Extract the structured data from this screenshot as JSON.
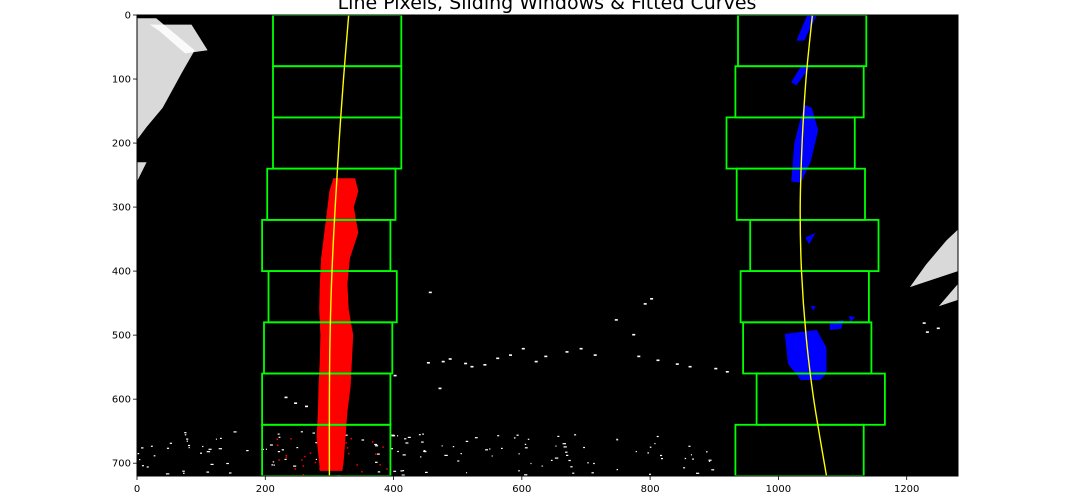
{
  "chart_data": {
    "type": "image-overlay",
    "title": "Line Pixels, Sliding Windows & Fitted Curves",
    "xlabel": "",
    "ylabel": "",
    "xlim": [
      0,
      1280
    ],
    "ylim": [
      720,
      0
    ],
    "x_ticks": [
      0,
      200,
      400,
      600,
      800,
      1000,
      1200
    ],
    "y_ticks": [
      0,
      100,
      200,
      300,
      400,
      500,
      600,
      700
    ],
    "grid": false,
    "background": "#000000",
    "colors": {
      "window": "#00ff00",
      "fit": "#ffff00",
      "left_pixels": "#ff0000",
      "right_pixels": "#0000ff",
      "noise": "#ffffff"
    },
    "window_height": 80,
    "left_windows": [
      {
        "x1": 212,
        "x2": 412,
        "y1": 0,
        "y2": 80
      },
      {
        "x1": 212,
        "x2": 412,
        "y1": 80,
        "y2": 160
      },
      {
        "x1": 212,
        "x2": 412,
        "y1": 160,
        "y2": 240
      },
      {
        "x1": 203,
        "x2": 403,
        "y1": 240,
        "y2": 320
      },
      {
        "x1": 195,
        "x2": 395,
        "y1": 320,
        "y2": 400
      },
      {
        "x1": 205,
        "x2": 405,
        "y1": 400,
        "y2": 480
      },
      {
        "x1": 198,
        "x2": 398,
        "y1": 480,
        "y2": 560
      },
      {
        "x1": 195,
        "x2": 395,
        "y1": 560,
        "y2": 640
      },
      {
        "x1": 195,
        "x2": 395,
        "y1": 640,
        "y2": 720
      }
    ],
    "right_windows": [
      {
        "x1": 937,
        "x2": 1137,
        "y1": 0,
        "y2": 80
      },
      {
        "x1": 933,
        "x2": 1133,
        "y1": 80,
        "y2": 160
      },
      {
        "x1": 919,
        "x2": 1119,
        "y1": 160,
        "y2": 240
      },
      {
        "x1": 935,
        "x2": 1135,
        "y1": 240,
        "y2": 320
      },
      {
        "x1": 956,
        "x2": 1156,
        "y1": 320,
        "y2": 400
      },
      {
        "x1": 941,
        "x2": 1141,
        "y1": 400,
        "y2": 480
      },
      {
        "x1": 945,
        "x2": 1145,
        "y1": 480,
        "y2": 560
      },
      {
        "x1": 966,
        "x2": 1166,
        "y1": 560,
        "y2": 640
      },
      {
        "x1": 933,
        "x2": 1133,
        "y1": 640,
        "y2": 720
      }
    ],
    "left_fit": {
      "x_of_y": [
        {
          "y": 0,
          "x": 330
        },
        {
          "y": 100,
          "x": 322
        },
        {
          "y": 200,
          "x": 315
        },
        {
          "y": 300,
          "x": 309
        },
        {
          "y": 400,
          "x": 304
        },
        {
          "y": 500,
          "x": 301
        },
        {
          "y": 600,
          "x": 300
        },
        {
          "y": 720,
          "x": 300
        }
      ]
    },
    "right_fit": {
      "x_of_y": [
        {
          "y": 0,
          "x": 1053
        },
        {
          "y": 100,
          "x": 1043
        },
        {
          "y": 200,
          "x": 1037
        },
        {
          "y": 300,
          "x": 1034
        },
        {
          "y": 400,
          "x": 1036
        },
        {
          "y": 500,
          "x": 1043
        },
        {
          "y": 600,
          "x": 1055
        },
        {
          "y": 720,
          "x": 1075
        }
      ]
    },
    "left_pixels": [
      {
        "y": 255,
        "x_min": 306,
        "x_max": 340
      },
      {
        "y": 275,
        "x_min": 300,
        "x_max": 345
      },
      {
        "y": 300,
        "x_min": 297,
        "x_max": 338
      },
      {
        "y": 340,
        "x_min": 292,
        "x_max": 345
      },
      {
        "y": 380,
        "x_min": 287,
        "x_max": 332
      },
      {
        "y": 420,
        "x_min": 285,
        "x_max": 328
      },
      {
        "y": 460,
        "x_min": 284,
        "x_max": 330
      },
      {
        "y": 500,
        "x_min": 286,
        "x_max": 337
      },
      {
        "y": 540,
        "x_min": 285,
        "x_max": 335
      },
      {
        "y": 580,
        "x_min": 283,
        "x_max": 333
      },
      {
        "y": 620,
        "x_min": 282,
        "x_max": 328
      },
      {
        "y": 660,
        "x_min": 280,
        "x_max": 325
      },
      {
        "y": 700,
        "x_min": 284,
        "x_max": 322
      },
      {
        "y": 712,
        "x_min": 285,
        "x_max": 320
      }
    ],
    "right_blobs": [
      [
        [
          1045,
          0
        ],
        [
          1060,
          0
        ],
        [
          1040,
          40
        ],
        [
          1028,
          40
        ]
      ],
      [
        [
          1035,
          80
        ],
        [
          1050,
          80
        ],
        [
          1028,
          110
        ],
        [
          1020,
          105
        ]
      ],
      [
        [
          1040,
          140
        ],
        [
          1052,
          145
        ],
        [
          1062,
          180
        ],
        [
          1050,
          230
        ],
        [
          1035,
          262
        ],
        [
          1020,
          260
        ],
        [
          1025,
          200
        ]
      ],
      [
        [
          1042,
          348
        ],
        [
          1058,
          340
        ],
        [
          1048,
          358
        ]
      ],
      [
        [
          1010,
          498
        ],
        [
          1060,
          492
        ],
        [
          1075,
          520
        ],
        [
          1075,
          560
        ],
        [
          1065,
          570
        ],
        [
          1035,
          570
        ],
        [
          1015,
          545
        ]
      ],
      [
        [
          1080,
          480
        ],
        [
          1102,
          476
        ],
        [
          1098,
          490
        ],
        [
          1080,
          492
        ]
      ],
      [
        [
          1110,
          470
        ],
        [
          1120,
          472
        ],
        [
          1112,
          480
        ]
      ],
      [
        [
          1050,
          455
        ],
        [
          1058,
          454
        ],
        [
          1055,
          462
        ]
      ]
    ],
    "noise_shapes": [
      [
        [
          0,
          5
        ],
        [
          30,
          5
        ],
        [
          90,
          55
        ],
        [
          70,
          90
        ],
        [
          40,
          145
        ],
        [
          15,
          175
        ],
        [
          0,
          195
        ]
      ],
      [
        [
          0,
          230
        ],
        [
          15,
          230
        ],
        [
          0,
          260
        ]
      ],
      [
        [
          20,
          15
        ],
        [
          85,
          15
        ],
        [
          110,
          55
        ],
        [
          75,
          60
        ],
        [
          35,
          25
        ]
      ],
      [
        [
          1280,
          335
        ],
        [
          1280,
          400
        ],
        [
          1250,
          410
        ],
        [
          1205,
          425
        ],
        [
          1230,
          390
        ],
        [
          1262,
          352
        ]
      ],
      [
        [
          1280,
          420
        ],
        [
          1280,
          445
        ],
        [
          1250,
          455
        ]
      ]
    ],
    "noise_specks": [
      [
        455,
        432
      ],
      [
        635,
        532
      ],
      [
        620,
        540
      ],
      [
        668,
        525
      ],
      [
        690,
        520
      ],
      [
        712,
        530
      ],
      [
        745,
        475
      ],
      [
        772,
        498
      ],
      [
        600,
        520
      ],
      [
        580,
        530
      ],
      [
        560,
        535
      ],
      [
        540,
        545
      ],
      [
        520,
        548
      ],
      [
        510,
        543
      ],
      [
        470,
        582
      ],
      [
        400,
        562
      ],
      [
        452,
        542
      ],
      [
        475,
        540
      ],
      [
        486,
        536
      ],
      [
        800,
        442
      ],
      [
        790,
        450
      ],
      [
        230,
        596
      ],
      [
        245,
        605
      ],
      [
        262,
        610
      ],
      [
        780,
        532
      ],
      [
        810,
        538
      ],
      [
        840,
        544
      ],
      [
        860,
        548
      ],
      [
        900,
        551
      ],
      [
        918,
        556
      ],
      [
        1225,
        480
      ],
      [
        1230,
        494
      ],
      [
        1247,
        488
      ]
    ],
    "bottom_noise_y_range": [
      650,
      720
    ]
  }
}
